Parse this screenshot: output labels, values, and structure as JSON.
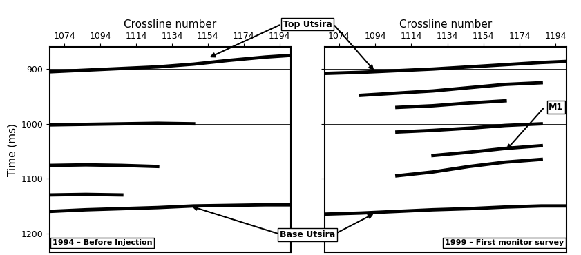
{
  "chart_data": [
    {
      "type": "line",
      "caption": "1994 – Before Injection",
      "x_label": "Crossline number",
      "y_label": "Time (ms)",
      "x": [
        1066,
        1086,
        1106,
        1126,
        1146,
        1166,
        1186,
        1200
      ],
      "series": [
        {
          "color": "#000000",
          "values": [
            905,
            902,
            899,
            896,
            891,
            884,
            878,
            875
          ]
        },
        {
          "color": "#000000",
          "values": [
            1002,
            1001,
            1000,
            999,
            1000,
            null,
            null,
            null
          ]
        },
        {
          "color": "#000000",
          "values": [
            1076,
            1075,
            1076,
            1078,
            null,
            null,
            null,
            null
          ]
        },
        {
          "color": "#000000",
          "values": [
            1130,
            1129,
            1130,
            null,
            null,
            null,
            null,
            null
          ]
        },
        {
          "color": "#000000",
          "values": [
            1160,
            1157,
            1155,
            1153,
            1150,
            1149,
            1148,
            1148
          ]
        }
      ],
      "xlim": [
        1066,
        1200
      ],
      "xticks": [
        1074,
        1094,
        1114,
        1134,
        1154,
        1174,
        1194
      ],
      "ylim": [
        1235,
        860
      ],
      "yticks": [
        900,
        1000,
        1100,
        1200
      ],
      "grid": "y",
      "tick_labels": true
    },
    {
      "type": "line",
      "caption": "1999 – First monitor survey",
      "x_label": "Crossline number",
      "x": [
        1066,
        1086,
        1106,
        1126,
        1146,
        1166,
        1186,
        1200
      ],
      "series": [
        {
          "color": "#000000",
          "values": [
            908,
            906,
            903,
            900,
            896,
            892,
            888,
            886
          ]
        },
        {
          "color": "#000000",
          "values": [
            null,
            948,
            944,
            940,
            934,
            928,
            925,
            null
          ]
        },
        {
          "color": "#000000",
          "values": [
            null,
            null,
            970,
            967,
            962,
            958,
            null,
            null
          ]
        },
        {
          "color": "#000000",
          "values": [
            null,
            null,
            1015,
            1012,
            1008,
            1003,
            1000,
            null
          ]
        },
        {
          "color": "#000000",
          "values": [
            null,
            null,
            null,
            1058,
            1052,
            1045,
            1040,
            null
          ]
        },
        {
          "color": "#000000",
          "values": [
            null,
            null,
            1095,
            1088,
            1078,
            1070,
            1065,
            null
          ]
        },
        {
          "color": "#000000",
          "values": [
            1165,
            1163,
            1160,
            1157,
            1155,
            1152,
            1150,
            1150
          ]
        }
      ],
      "xlim": [
        1066,
        1200
      ],
      "xticks": [
        1074,
        1094,
        1114,
        1134,
        1154,
        1174,
        1194
      ],
      "ylim": [
        1235,
        860
      ],
      "yticks": [
        900,
        1000,
        1100,
        1200
      ],
      "grid": "y",
      "tick_labels": "x"
    }
  ],
  "annotations": [
    {
      "text": "Top Utsira",
      "targets": [
        {
          "panel": 0,
          "x": 1154,
          "y": 880
        },
        {
          "panel": 1,
          "x": 1094,
          "y": 905
        }
      ]
    },
    {
      "text": "Base Utsira",
      "targets": [
        {
          "panel": 0,
          "x": 1144,
          "y": 1150
        },
        {
          "panel": 1,
          "x": 1094,
          "y": 1163
        }
      ]
    },
    {
      "text": "M1",
      "targets": [
        {
          "panel": 1,
          "x": 1166,
          "y": 1050
        }
      ]
    }
  ]
}
